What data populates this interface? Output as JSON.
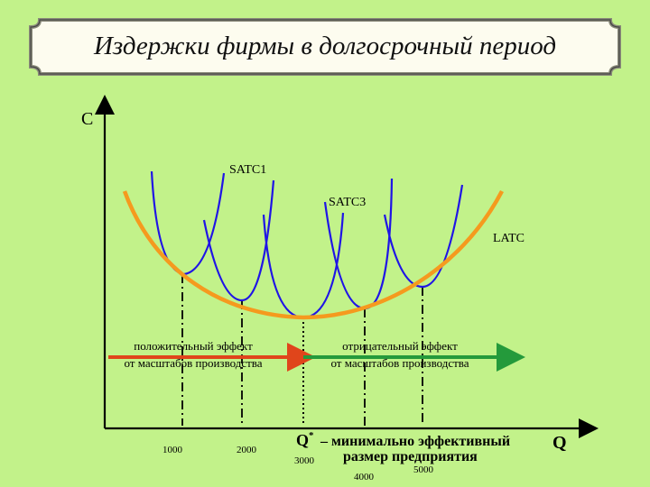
{
  "title": "Издержки фирмы в долгосрочный период",
  "axes": {
    "y_label": "C",
    "x_label": "Q"
  },
  "curves": {
    "satc1_label": "SATC1",
    "satc3_label": "SATC3",
    "latc_label": "LATC"
  },
  "effects": {
    "positive": [
      "положительный эффект",
      "от масштабов производства"
    ],
    "negative": [
      "отрицательный эффект",
      "от масштабов производства"
    ]
  },
  "q_star": {
    "symbol": "Q",
    "superscript": "*",
    "line1": "– минимально эффективный",
    "line2": "размер предприятия"
  },
  "ticks": [
    "1000",
    "2000",
    "3000",
    "4000",
    "5000"
  ],
  "colors": {
    "background": "#c2f28a",
    "latc": "#f59a1e",
    "satc": "#1f14e6",
    "positive_arrow": "#e0451b",
    "negative_arrow": "#249a3b"
  }
}
